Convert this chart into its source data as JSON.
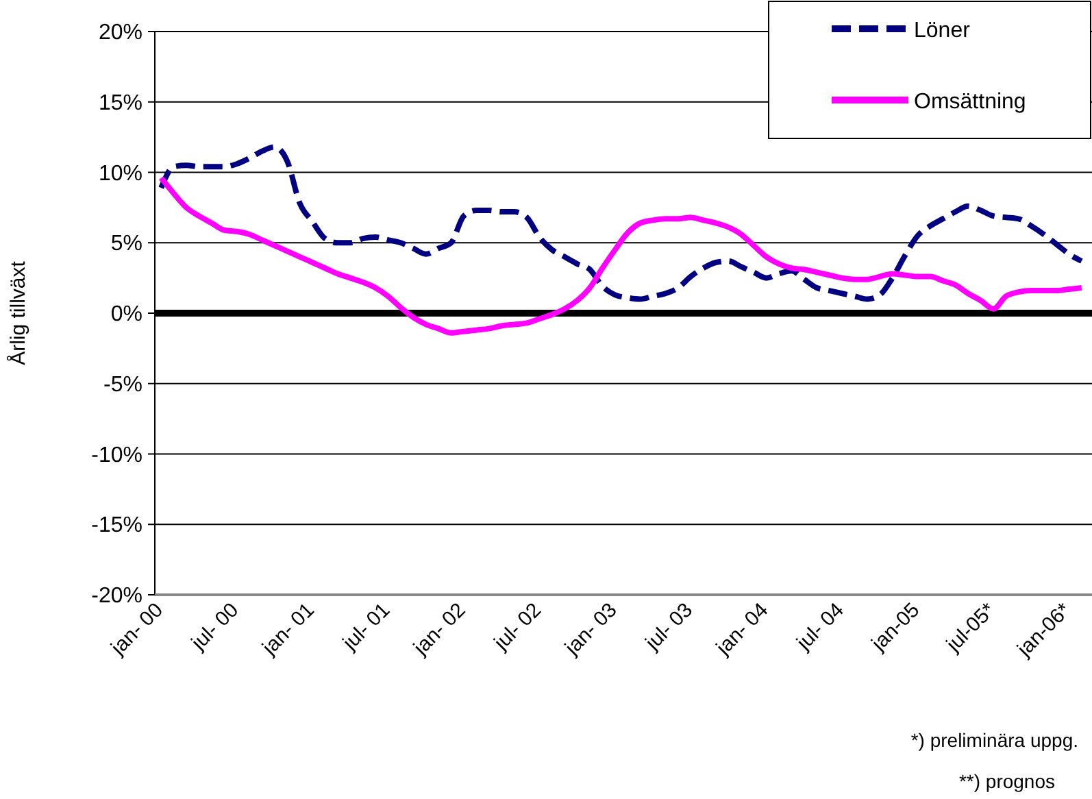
{
  "chart_data": {
    "type": "line",
    "ylabel": "Årlig tillväxt",
    "categories": [
      "jan- 00",
      null,
      null,
      null,
      null,
      null,
      "jul- 00",
      null,
      null,
      null,
      null,
      null,
      "jan- 01",
      null,
      null,
      null,
      null,
      null,
      "jul- 01",
      null,
      null,
      null,
      null,
      null,
      "jan- 02",
      null,
      null,
      null,
      null,
      null,
      "jul- 02",
      null,
      null,
      null,
      null,
      null,
      "jan- 03",
      null,
      null,
      null,
      null,
      null,
      "jul- 03",
      null,
      null,
      null,
      null,
      null,
      "jan- 04",
      null,
      null,
      null,
      null,
      null,
      "jul- 04",
      null,
      null,
      null,
      null,
      null,
      "jan-05",
      null,
      null,
      null,
      null,
      null,
      "jul-05*",
      null,
      null,
      null,
      null,
      null,
      "jan-06*",
      null
    ],
    "series": [
      {
        "name": "Löner",
        "color": "#000080",
        "line_style": "dashed",
        "values": [
          8.9,
          10.4,
          10.5,
          10.4,
          10.4,
          10.4,
          10.6,
          11.0,
          11.5,
          11.8,
          10.8,
          7.8,
          6.5,
          5.3,
          5.0,
          5.0,
          5.3,
          5.4,
          5.2,
          5.0,
          4.6,
          4.2,
          4.6,
          5.0,
          6.9,
          7.3,
          7.3,
          7.2,
          7.2,
          6.8,
          5.4,
          4.5,
          4.0,
          3.5,
          3.1,
          1.9,
          1.3,
          1.1,
          1.0,
          1.2,
          1.4,
          1.8,
          2.6,
          3.2,
          3.6,
          3.7,
          3.3,
          2.9,
          2.5,
          2.8,
          3.0,
          2.4,
          1.8,
          1.6,
          1.4,
          1.2,
          1.0,
          1.3,
          2.5,
          4.1,
          5.5,
          6.2,
          6.7,
          7.2,
          7.6,
          7.3,
          6.9,
          6.8,
          6.7,
          6.2,
          5.6,
          4.9,
          4.2,
          3.7
        ]
      },
      {
        "name": "Omsättning",
        "color": "#ff00ff",
        "line_style": "solid",
        "values": [
          9.6,
          8.5,
          7.5,
          6.9,
          6.4,
          5.9,
          5.8,
          5.6,
          5.2,
          4.8,
          4.4,
          4.0,
          3.6,
          3.2,
          2.8,
          2.5,
          2.2,
          1.8,
          1.2,
          0.4,
          -0.3,
          -0.8,
          -1.1,
          -1.4,
          -1.3,
          -1.2,
          -1.1,
          -0.9,
          -0.8,
          -0.7,
          -0.4,
          -0.1,
          0.3,
          0.9,
          1.8,
          3.2,
          4.5,
          5.7,
          6.4,
          6.6,
          6.7,
          6.7,
          6.8,
          6.6,
          6.4,
          6.1,
          5.6,
          4.8,
          4.0,
          3.5,
          3.2,
          3.1,
          2.9,
          2.7,
          2.5,
          2.4,
          2.4,
          2.6,
          2.8,
          2.7,
          2.6,
          2.6,
          2.3,
          2.0,
          1.4,
          0.9,
          0.3,
          1.2,
          1.5,
          1.6,
          1.6,
          1.6,
          1.7,
          1.8
        ]
      }
    ],
    "ylim": [
      -20,
      20
    ],
    "yticks": [
      {
        "value": -20,
        "label": "-20%"
      },
      {
        "value": -15,
        "label": "-15%"
      },
      {
        "value": -10,
        "label": "-10%"
      },
      {
        "value": -5,
        "label": "-5%"
      },
      {
        "value": 0,
        "label": "0%"
      },
      {
        "value": 5,
        "label": "5%"
      },
      {
        "value": 10,
        "label": "10%"
      },
      {
        "value": 15,
        "label": "15%"
      },
      {
        "value": 20,
        "label": "20%"
      }
    ],
    "grid": "y",
    "legend": "top right",
    "marker": "none",
    "ref_lines": [
      {
        "axis": "y",
        "value": 0,
        "color": "#000000"
      }
    ],
    "annotations": [
      "*) preliminära uppg.",
      "**) prognos"
    ]
  }
}
